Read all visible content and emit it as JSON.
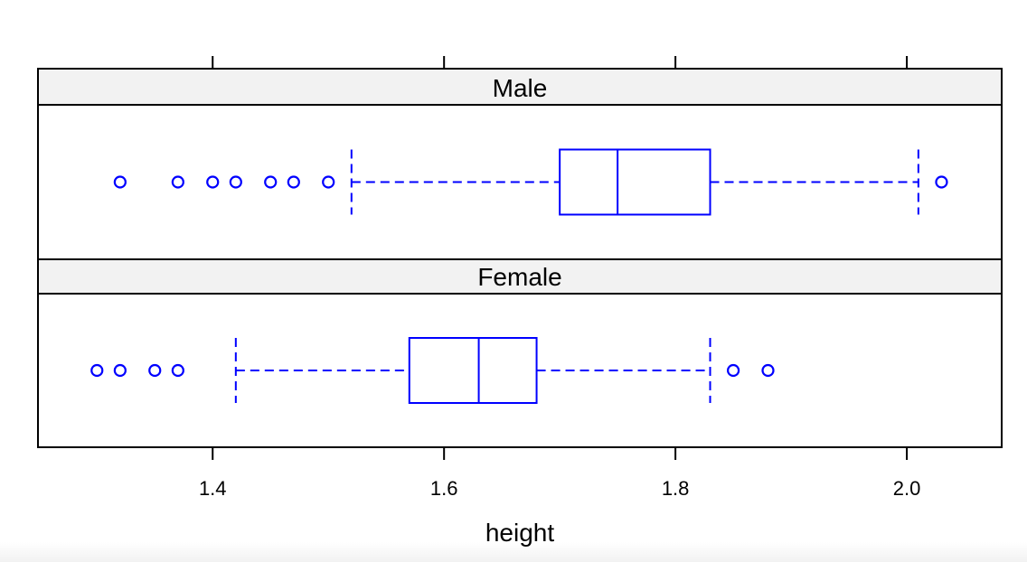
{
  "chart_data": {
    "type": "boxplot",
    "title": "",
    "xlabel": "height",
    "ylabel": "",
    "xlim": [
      1.249,
      2.082
    ],
    "xticks": [
      1.4,
      1.6,
      1.8,
      2.0
    ],
    "xtick_labels": [
      "1.4",
      "1.6",
      "1.8",
      "2.0"
    ],
    "color": "#0000ff",
    "strip_color": "#f2f2f2",
    "panels": [
      {
        "label": "Male",
        "whisker_low": 1.52,
        "q1": 1.7,
        "median": 1.75,
        "q3": 1.83,
        "whisker_high": 2.01,
        "outliers": [
          1.32,
          1.37,
          1.4,
          1.42,
          1.45,
          1.47,
          1.5,
          2.03
        ]
      },
      {
        "label": "Female",
        "whisker_low": 1.42,
        "q1": 1.57,
        "median": 1.63,
        "q3": 1.68,
        "whisker_high": 1.83,
        "outliers": [
          1.3,
          1.32,
          1.35,
          1.37,
          1.85,
          1.88
        ]
      }
    ]
  }
}
